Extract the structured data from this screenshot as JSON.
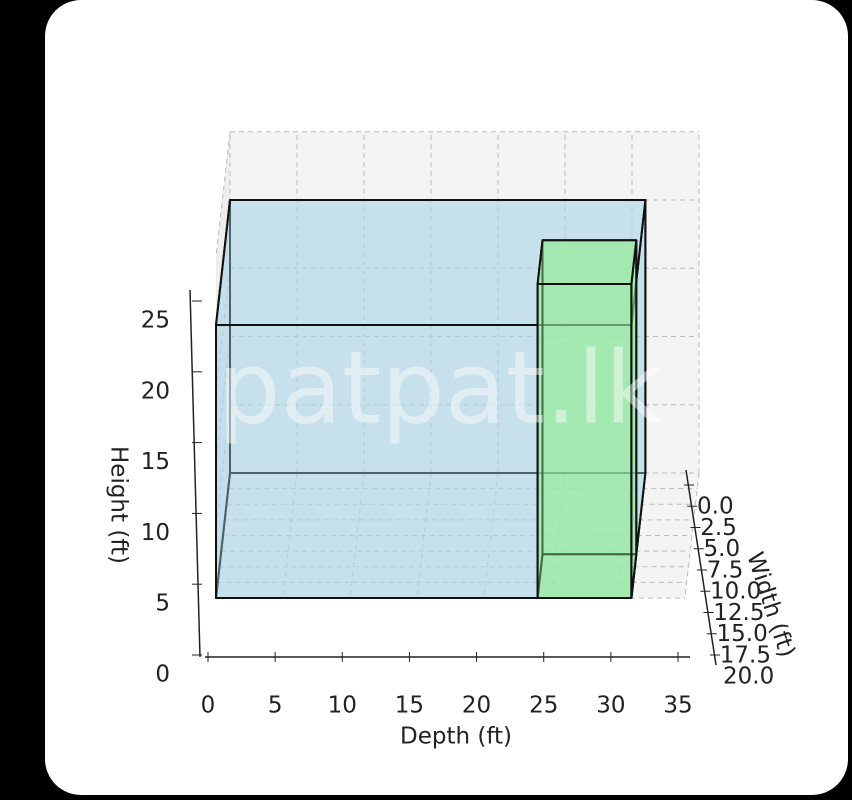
{
  "chart_data": {
    "type": "box3d",
    "xlabel": "Depth (ft)",
    "ylabel": "Width (ft)",
    "zlabel": "Height (ft)",
    "watermark": "patpat.lk",
    "xlim": [
      0,
      35
    ],
    "xticks": [
      0,
      5,
      10,
      15,
      20,
      25,
      30,
      35
    ],
    "ylim": [
      0,
      20
    ],
    "yticks": [
      {
        "value": 0,
        "label": "0.0"
      },
      {
        "value": 2.5,
        "label": "2.5"
      },
      {
        "value": 5,
        "label": "5.0"
      },
      {
        "value": 7.5,
        "label": "7.5"
      },
      {
        "value": 10,
        "label": "10.0"
      },
      {
        "value": 12.5,
        "label": "12.5"
      },
      {
        "value": 15,
        "label": "15.0"
      },
      {
        "value": 17.5,
        "label": "17.5"
      },
      {
        "value": 20,
        "label": "20.0"
      }
    ],
    "zlim": [
      0,
      25
    ],
    "zticks": [
      0,
      5,
      10,
      15,
      20,
      25
    ],
    "grid": true,
    "boxes": [
      {
        "color": "#add8e6",
        "x": [
          0,
          31
        ],
        "y": [
          0,
          20
        ],
        "z": [
          0,
          20
        ]
      },
      {
        "color": "#90ee90",
        "x": [
          24,
          31
        ],
        "y": [
          13,
          20
        ],
        "z": [
          0,
          23
        ]
      }
    ]
  }
}
